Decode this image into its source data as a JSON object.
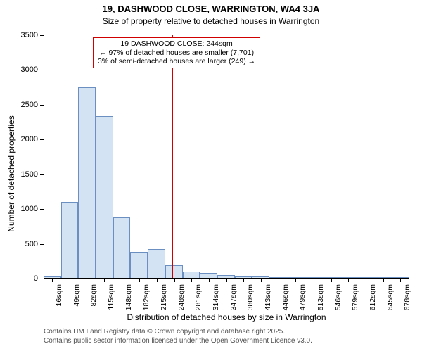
{
  "title": "19, DASHWOOD CLOSE, WARRINGTON, WA4 3JA",
  "subtitle": "Size of property relative to detached houses in Warrington",
  "ylabel": "Number of detached properties",
  "xlabel": "Distribution of detached houses by size in Warrington",
  "footer_line1": "Contains HM Land Registry data © Crown copyright and database right 2025.",
  "footer_line2": "Contains public sector information licensed under the Open Government Licence v3.0.",
  "annotation": {
    "line1": "19 DASHWOOD CLOSE: 244sqm",
    "line2": "← 97% of detached houses are smaller (7,701)",
    "line3": "3% of semi-detached houses are larger (249) →"
  },
  "chart": {
    "type": "histogram",
    "background_color": "#ffffff",
    "bar_fill": "#d4e3f4",
    "bar_border": "#6a8fc0",
    "axis_color": "#000000",
    "vline_color": "#d00000",
    "annot_border": "#d00000",
    "highlight_value": 244,
    "xmin": 0,
    "xmax": 695,
    "ymin": 0,
    "ymax": 3500,
    "yticks": [
      0,
      500,
      1000,
      1500,
      2000,
      2500,
      3000,
      3500
    ],
    "xticks": [
      16,
      49,
      82,
      115,
      148,
      182,
      215,
      248,
      281,
      314,
      347,
      380,
      413,
      446,
      479,
      513,
      546,
      579,
      612,
      645,
      678
    ],
    "bar_width_units": 33,
    "bins": [
      {
        "start": 0,
        "count": 30
      },
      {
        "start": 33,
        "count": 1100
      },
      {
        "start": 66,
        "count": 2750
      },
      {
        "start": 99,
        "count": 2340
      },
      {
        "start": 132,
        "count": 880
      },
      {
        "start": 165,
        "count": 380
      },
      {
        "start": 198,
        "count": 420
      },
      {
        "start": 231,
        "count": 190
      },
      {
        "start": 264,
        "count": 100
      },
      {
        "start": 297,
        "count": 80
      },
      {
        "start": 330,
        "count": 50
      },
      {
        "start": 363,
        "count": 30
      },
      {
        "start": 396,
        "count": 30
      },
      {
        "start": 429,
        "count": 10
      },
      {
        "start": 462,
        "count": 5
      },
      {
        "start": 495,
        "count": 5
      },
      {
        "start": 528,
        "count": 3
      },
      {
        "start": 561,
        "count": 2
      },
      {
        "start": 594,
        "count": 2
      },
      {
        "start": 627,
        "count": 1
      },
      {
        "start": 660,
        "count": 1
      }
    ]
  }
}
